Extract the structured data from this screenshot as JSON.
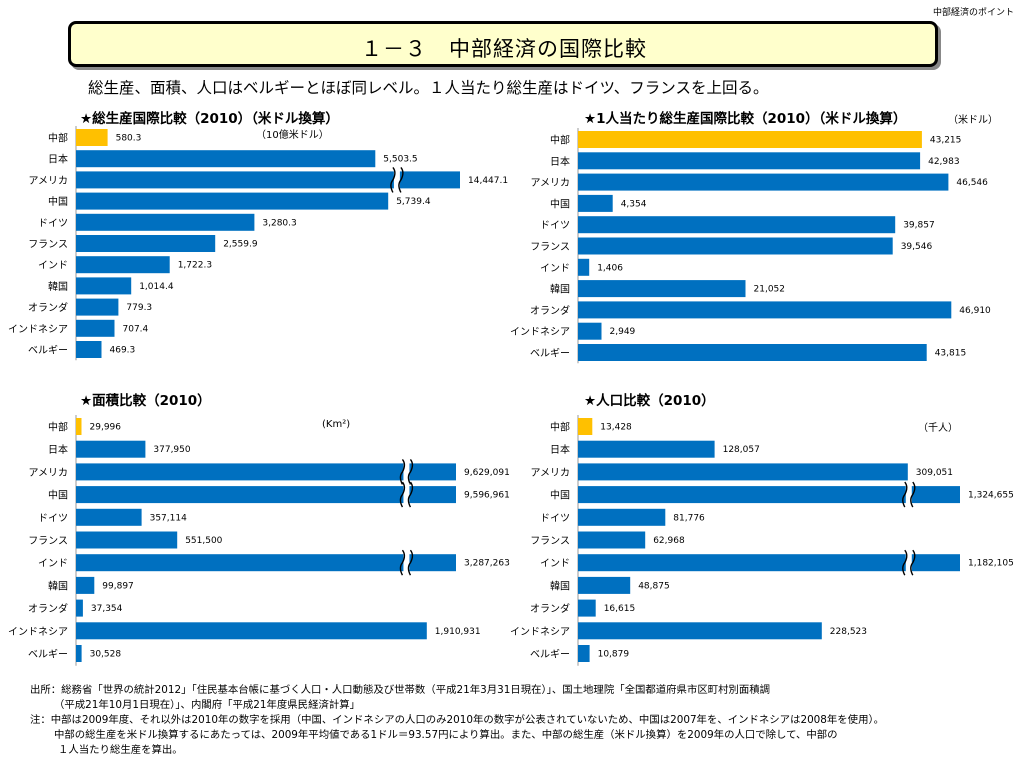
{
  "header": {
    "corner_label": "中部経済のポイント",
    "title": "１－３　中部経済の国際比較",
    "subtitle": "総生産、面積、人口はベルギーとほぼ同レベル。１人当たり総生産はドイツ、フランスを上回る。"
  },
  "colors": {
    "highlight": "#ffc000",
    "bar": "#0070c0",
    "break_mark": "#000000"
  },
  "chart_data": [
    {
      "type": "bar",
      "orientation": "horizontal",
      "title": "★総生産国際比較（2010）（米ドル換算）",
      "unit": "（10億米ドル）",
      "categories": [
        "中部",
        "日本",
        "アメリカ",
        "中国",
        "ドイツ",
        "フランス",
        "インド",
        "韓国",
        "オランダ",
        "インドネシア",
        "ベルギー"
      ],
      "values": [
        580.3,
        5503.5,
        14447.1,
        5739.4,
        3280.3,
        2559.9,
        1722.3,
        1014.4,
        779.3,
        707.4,
        469.3
      ],
      "labels": [
        "580.3",
        "5,503.5",
        "14,447.1",
        "5,739.4",
        "3,280.3",
        "2,559.9",
        "1,722.3",
        "1,014.4",
        "779.3",
        "707.4",
        "469.3"
      ],
      "highlight_index": 0,
      "axis_break": {
        "at": 5900,
        "display_max": 7060,
        "broken": [
          2
        ]
      }
    },
    {
      "type": "bar",
      "orientation": "horizontal",
      "title": "★1人当たり総生産国際比較（2010）（米ドル換算）",
      "unit": "（米ドル）",
      "categories": [
        "中部",
        "日本",
        "アメリカ",
        "中国",
        "ドイツ",
        "フランス",
        "インド",
        "韓国",
        "オランダ",
        "インドネシア",
        "ベルギー"
      ],
      "values": [
        43215,
        42983,
        46546,
        4354,
        39857,
        39546,
        1406,
        21052,
        46910,
        2949,
        43815
      ],
      "labels": [
        "43,215",
        "42,983",
        "46,546",
        "4,354",
        "39,857",
        "39,546",
        "1,406",
        "21,052",
        "46,910",
        "2,949",
        "43,815"
      ],
      "highlight_index": 0
    },
    {
      "type": "bar",
      "orientation": "horizontal",
      "title": "★面積比較（2010）",
      "unit": "(Km²)",
      "categories": [
        "中部",
        "日本",
        "アメリカ",
        "中国",
        "ドイツ",
        "フランス",
        "インド",
        "韓国",
        "オランダ",
        "インドネシア",
        "ベルギー"
      ],
      "values": [
        29996,
        377950,
        9629091,
        9596961,
        357114,
        551500,
        3287263,
        99897,
        37354,
        1910931,
        30528
      ],
      "labels": [
        "29,996",
        "377,950",
        "9,629,091",
        "9,596,961",
        "357,114",
        "551,500",
        "3,287,263",
        "99,897",
        "37,354",
        "1,910,931",
        "30,528"
      ],
      "highlight_index": 0,
      "axis_break": {
        "at": 1800000,
        "display_max": 2070000,
        "broken": [
          2,
          3,
          6
        ]
      }
    },
    {
      "type": "bar",
      "orientation": "horizontal",
      "title": "★人口比較（2010）",
      "unit": "（千人）",
      "categories": [
        "中部",
        "日本",
        "アメリカ",
        "中国",
        "ドイツ",
        "フランス",
        "インド",
        "韓国",
        "オランダ",
        "インドネシア",
        "ベルギー"
      ],
      "values": [
        13428,
        128057,
        309051,
        1324655,
        81776,
        62968,
        1182105,
        48875,
        16615,
        228523,
        10879
      ],
      "labels": [
        "13,428",
        "128,057",
        "309,051",
        "1,324,655",
        "81,776",
        "62,968",
        "1,182,105",
        "48,875",
        "16,615",
        "228,523",
        "10,879"
      ],
      "highlight_index": 0,
      "axis_break": {
        "at": 310000,
        "display_max": 358000,
        "broken": [
          3,
          6
        ]
      }
    }
  ],
  "footer": {
    "source": "出所：総務省「世界の統計2012」「住民基本台帳に基づく人口・人口動態及び世帯数（平成21年3月31日現在）」、国土地理院「全国都道府県市区町村別面積調",
    "source_cont": "（平成21年10月1日現在）」、内閣府「平成21年度県民経済計算」",
    "note": "注：中部は2009年度、それ以外は2010年の数字を採用（中国、インドネシアの人口のみ2010年の数字が公表されていないため、中国は2007年を、インドネシアは2008年を使用）。",
    "note_cont1": "中部の総生産を米ドル換算するにあたっては、2009年平均値である1ドル＝93.57円により算出。また、中部の総生産（米ドル換算）を2009年の人口で除して、中部の",
    "note_cont2": "１人当たり総生産を算出。"
  }
}
